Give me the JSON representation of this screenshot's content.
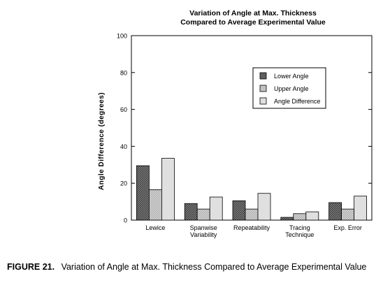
{
  "chart_data": {
    "type": "bar",
    "title": [
      "Variation of Angle at Max. Thickness",
      "Compared to Average Experimental Value"
    ],
    "xlabel": "",
    "ylabel": "Angle Difference (degrees)",
    "ylim": [
      0,
      100
    ],
    "yticks": [
      0,
      20,
      40,
      60,
      80,
      100
    ],
    "grid": false,
    "legend_position": "upper-right",
    "categories": [
      [
        "Lewice"
      ],
      [
        "Spanwise",
        "Variability"
      ],
      [
        "Repeatability"
      ],
      [
        "Tracing",
        "Technique"
      ],
      [
        "Exp. Error"
      ]
    ],
    "series": [
      {
        "name": "Lower Angle",
        "values": [
          29.5,
          9,
          10.5,
          1.5,
          9.5
        ],
        "pattern": "dark-hatch"
      },
      {
        "name": "Upper Angle",
        "values": [
          16.5,
          6,
          6,
          3.5,
          6
        ],
        "pattern": "light-hatch"
      },
      {
        "name": "Angle Difference",
        "values": [
          33.5,
          12.5,
          14.5,
          4.5,
          13
        ],
        "pattern": "fine-hatch"
      }
    ]
  },
  "caption": {
    "figure_label": "FIGURE 21.",
    "text": "Variation of Angle at Max. Thickness Compared to Average Experimental Value"
  }
}
